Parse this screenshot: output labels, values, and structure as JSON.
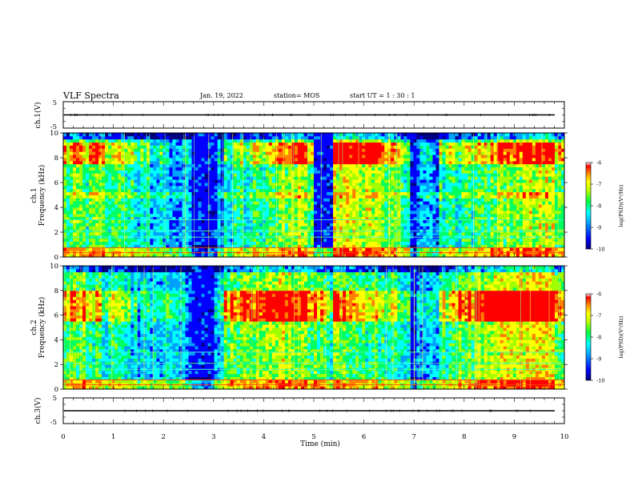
{
  "header": {
    "title": "VLF Spectra",
    "date": "Jan. 19, 2022",
    "station": "station= MOS",
    "start": "start  UT =   1 : 30 : 1"
  },
  "chart_data": [
    {
      "type": "line",
      "name": "ch1-voltage",
      "ylabel": "ch.1(V)",
      "ylim": [
        -5,
        5
      ],
      "yticks": [
        "5",
        "-5"
      ],
      "trace_level": 0
    },
    {
      "type": "heatmap",
      "name": "ch1-spectrogram",
      "ylabel_line1": "ch.1",
      "ylabel_line2": "Frequency  (kHz)",
      "ylim": [
        0,
        10
      ],
      "yticks": [
        "0",
        "2",
        "4",
        "6",
        "8",
        "10"
      ],
      "xlim": [
        0,
        10
      ],
      "colorbar": {
        "label": "log(PSD)(V²/Hz)",
        "ticks": [
          "-6",
          "-7",
          "-8",
          "-9",
          "-10"
        ],
        "range": [
          -10,
          -6
        ]
      },
      "quiet_intervals_min": [
        [
          2.55,
          3.05
        ],
        [
          5.0,
          5.4
        ],
        [
          6.9,
          7.05
        ]
      ],
      "colors": [
        "#000080",
        "#0000ff",
        "#00a0ff",
        "#00ffff",
        "#00ff60",
        "#a0ff00",
        "#ffff00",
        "#ff8000",
        "#ff0000"
      ]
    },
    {
      "type": "heatmap",
      "name": "ch2-spectrogram",
      "ylabel_line1": "ch.2",
      "ylabel_line2": "Frequency  (kHz)",
      "ylim": [
        0,
        10
      ],
      "yticks": [
        "0",
        "2",
        "4",
        "6",
        "8",
        "10"
      ],
      "xlim": [
        0,
        10
      ],
      "colorbar": {
        "label": "log(PSD)(V²/Hz)",
        "ticks": [
          "-6",
          "-7",
          "-8",
          "-9",
          "-10"
        ],
        "range": [
          -10,
          -6
        ]
      },
      "quiet_intervals_min": [
        [
          2.55,
          3.0
        ],
        [
          6.9,
          7.05
        ]
      ],
      "colors": [
        "#000080",
        "#0000ff",
        "#00a0ff",
        "#00ffff",
        "#00ff60",
        "#a0ff00",
        "#ffff00",
        "#ff8000",
        "#ff0000"
      ]
    },
    {
      "type": "line",
      "name": "ch3-voltage",
      "ylabel": "ch.3(V)",
      "ylim": [
        -5,
        5
      ],
      "yticks": [
        "5",
        "-5"
      ],
      "trace_level": 0
    }
  ],
  "xaxis": {
    "label": "Time  (min)",
    "ticks": [
      "0",
      "1",
      "2",
      "3",
      "4",
      "5",
      "6",
      "7",
      "8",
      "9",
      "10"
    ],
    "range": [
      0,
      10
    ]
  }
}
